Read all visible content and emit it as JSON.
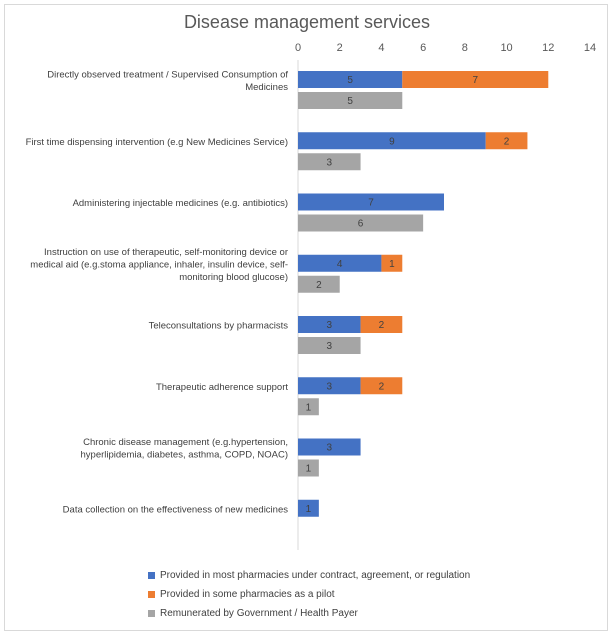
{
  "chart_data": {
    "type": "bar",
    "orientation": "horizontal",
    "stacked": true,
    "title": "Disease management services",
    "xlim": [
      0,
      14
    ],
    "xticks": [
      0,
      2,
      4,
      6,
      8,
      10,
      12,
      14
    ],
    "xaxis_position": "top",
    "grid": false,
    "legend_position": "bottom",
    "categories": [
      [
        "Directly observed treatment / Supervised Consumption of",
        "Medicines"
      ],
      [
        "First time dispensing intervention (e.g New Medicines Service)"
      ],
      [
        "Administering injectable medicines (e.g. antibiotics)"
      ],
      [
        "Instruction on use of therapeutic, self-monitoring device or",
        "medical aid (e.g.stoma appliance, inhaler, insulin device, self-",
        "monitoring blood glucose)"
      ],
      [
        "Teleconsultations by pharmacists"
      ],
      [
        "Therapeutic adherence support"
      ],
      [
        "Chronic disease management (e.g.hypertension,",
        "hyperlipidemia, diabetes, asthma, COPD, NOAC)"
      ],
      [
        "Data collection on the effectiveness of new medicines"
      ]
    ],
    "series": [
      {
        "name": "Provided in most pharmacies under contract, agreement, or regulation",
        "color": "#4472c4",
        "stack": "provided",
        "values": [
          5,
          9,
          7,
          4,
          3,
          3,
          3,
          1
        ]
      },
      {
        "name": "Provided in some pharmacies as a pilot",
        "color": "#ed7d31",
        "stack": "provided",
        "values": [
          7,
          2,
          0,
          1,
          2,
          2,
          0,
          0
        ]
      },
      {
        "name": "Remunerated by Government / Health Payer",
        "color": "#a5a5a5",
        "stack": "remunerated",
        "values": [
          5,
          3,
          6,
          2,
          3,
          1,
          1,
          0
        ]
      }
    ]
  }
}
